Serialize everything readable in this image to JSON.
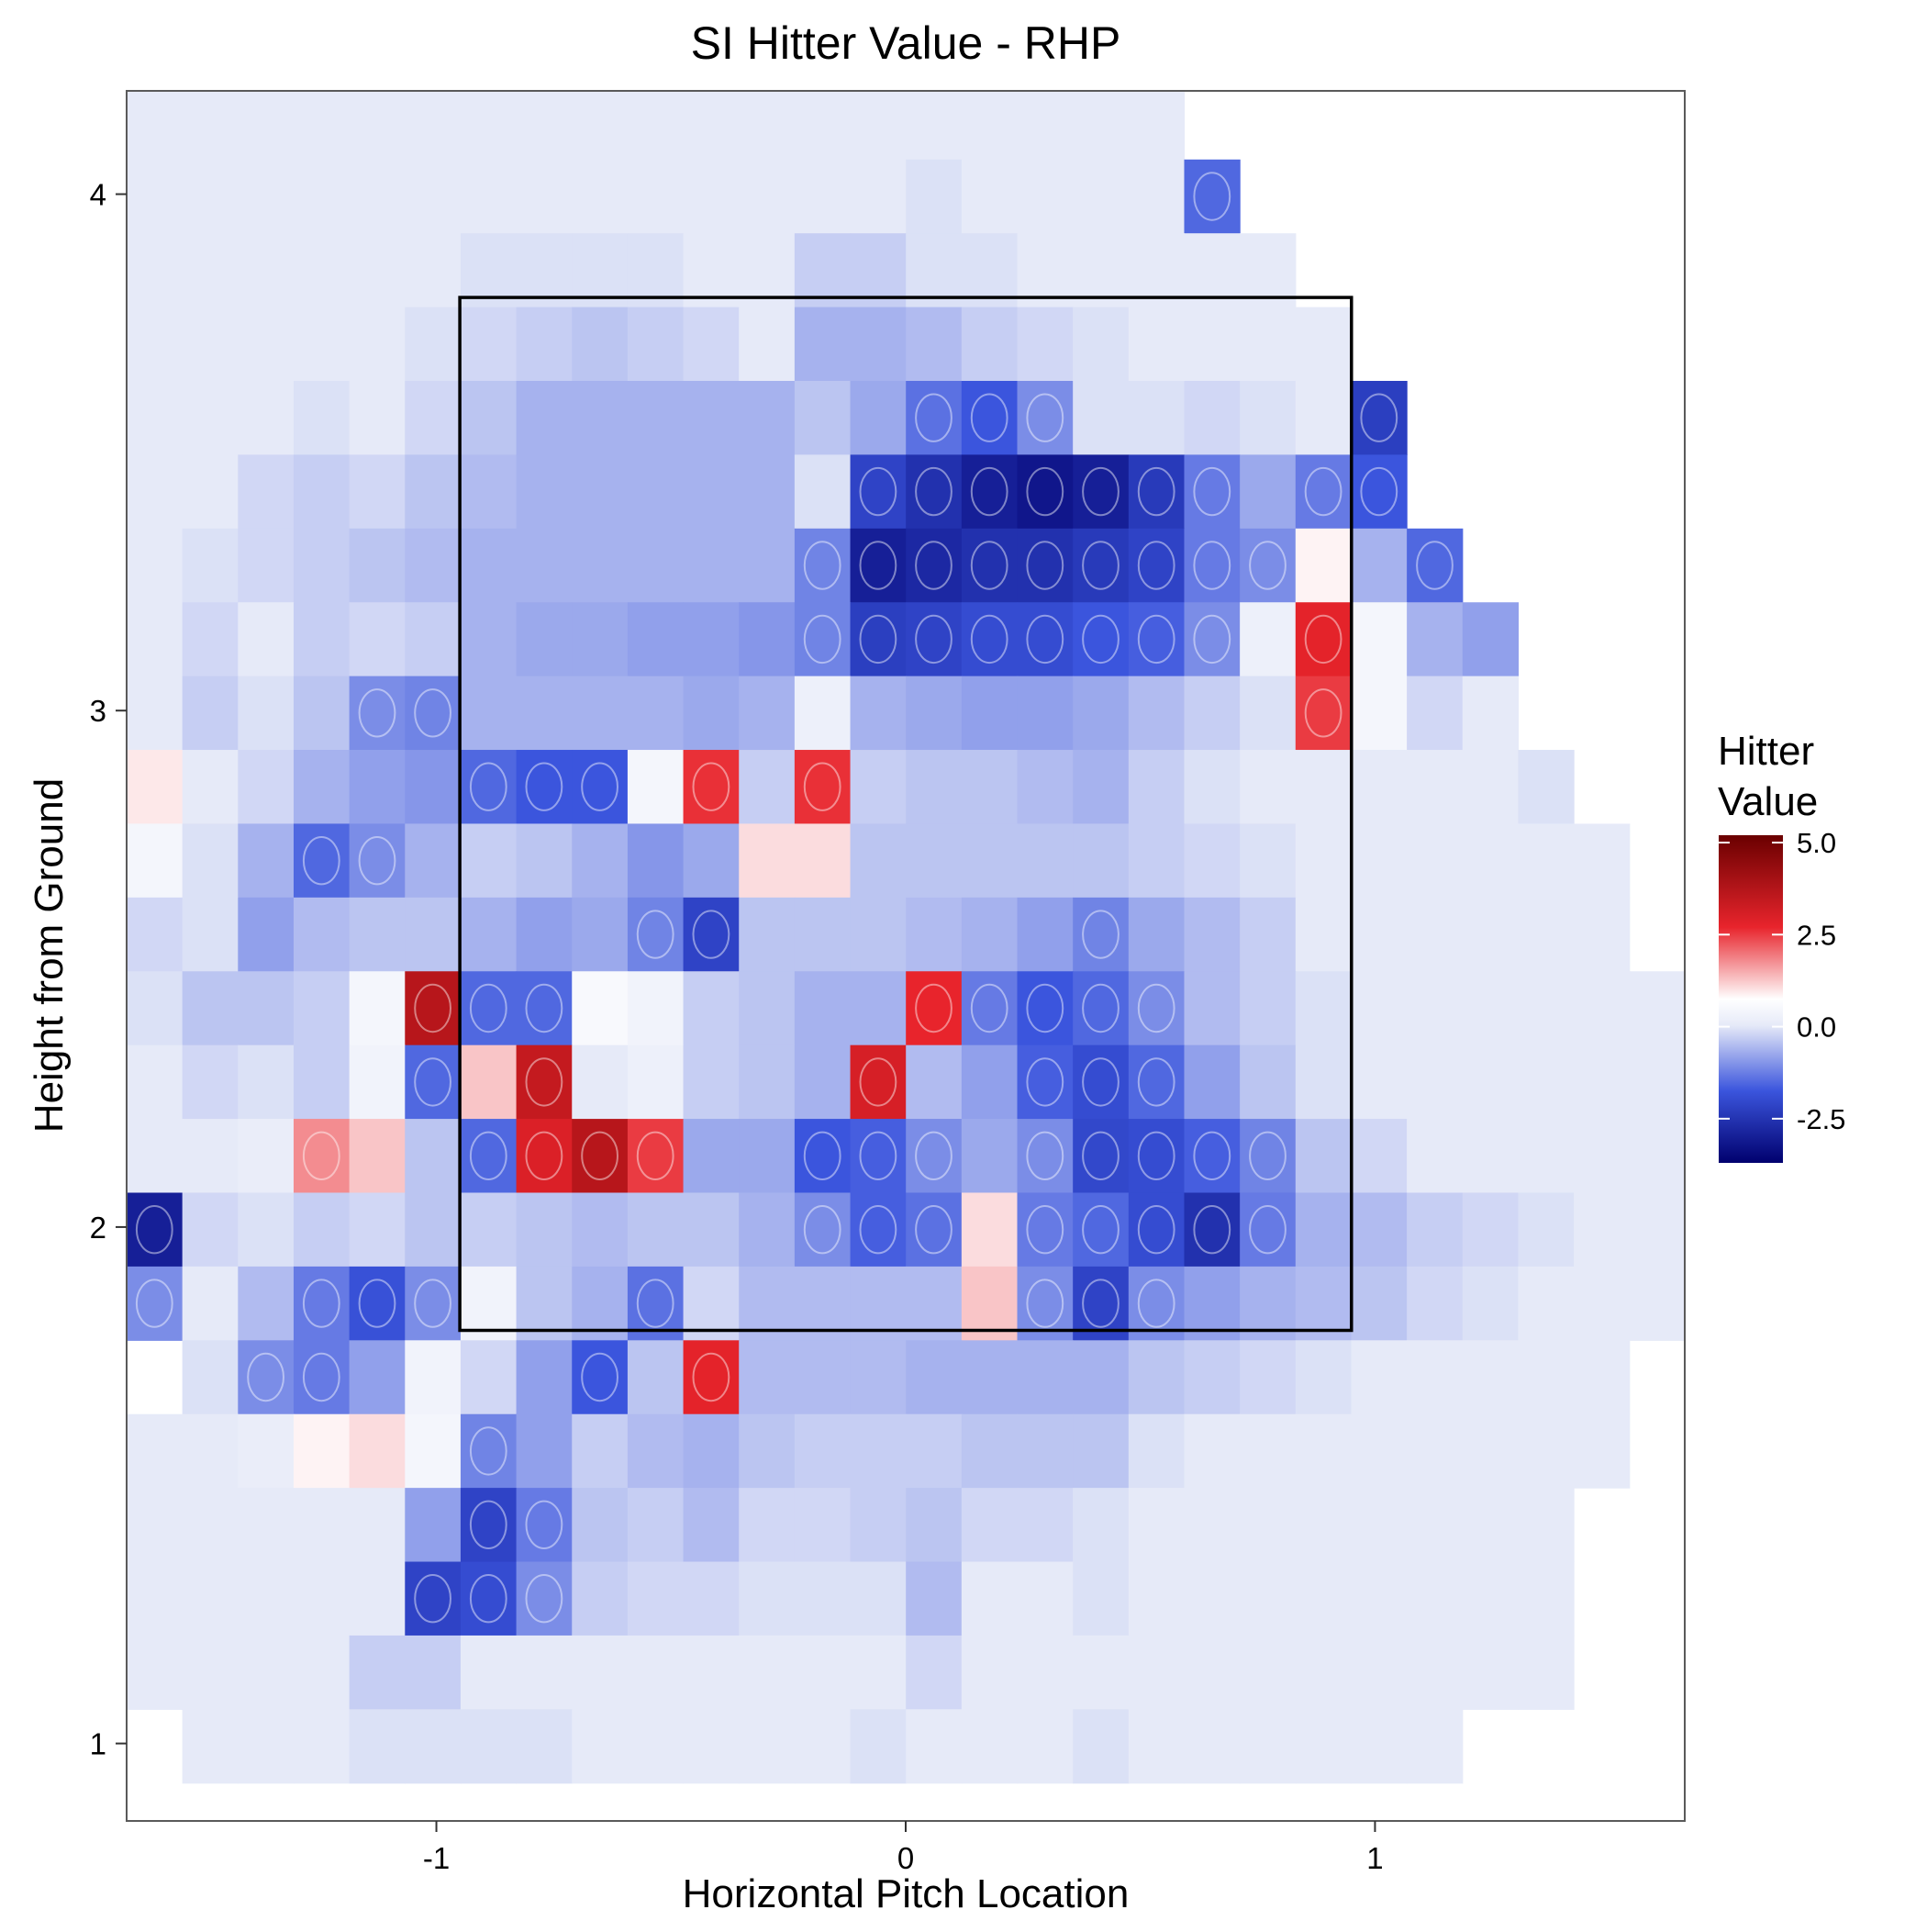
{
  "chart_data": {
    "type": "heatmap",
    "title": "SI Hitter Value - RHP",
    "xlabel": "Horizontal Pitch Location",
    "ylabel": "Height from Ground",
    "xlim": [
      -1.66,
      1.66
    ],
    "ylim": [
      0.85,
      4.2
    ],
    "x_ticks": [
      -1,
      0,
      1
    ],
    "x_tick_labels": [
      "-1",
      "0",
      "1"
    ],
    "y_ticks": [
      1,
      2,
      3,
      4
    ],
    "y_tick_labels": [
      "1",
      "2",
      "3",
      "4"
    ],
    "grid": false,
    "legend": {
      "title_lines": [
        "Hitter",
        "Value"
      ],
      "placement": "right",
      "range": [
        -3.7,
        5.2
      ],
      "ticks": [
        5.0,
        2.5,
        0.0,
        -2.5
      ],
      "tick_labels": [
        "5.0",
        "2.5",
        "0.0",
        "-2.5"
      ],
      "colors": {
        "low": "#00006e",
        "mid_low": "#3b55dd",
        "zero": "#e6eaf8",
        "mid_high": "#e8242c",
        "high": "#6a0000"
      }
    },
    "strike_zone": {
      "x": [
        -0.95,
        0.95
      ],
      "y": [
        1.8,
        3.8
      ]
    },
    "grid_cells": {
      "x_min": -1.66,
      "dx": 0.1186,
      "y_top": 4.21,
      "dy": 0.1429,
      "columns": 28,
      "rows": 23,
      "values": [
        [
          -0.2,
          -0.2,
          -0.2,
          -0.2,
          -0.2,
          -0.2,
          -0.2,
          -0.2,
          -0.2,
          -0.2,
          -0.2,
          -0.2,
          -0.2,
          -0.2,
          -0.2,
          -0.2,
          -0.2,
          -0.2,
          -0.2,
          null,
          null,
          null,
          null,
          null,
          null,
          null,
          null,
          null
        ],
        [
          -0.2,
          -0.2,
          -0.2,
          -0.2,
          -0.2,
          -0.2,
          -0.2,
          -0.2,
          -0.2,
          -0.2,
          -0.2,
          -0.2,
          -0.2,
          -0.2,
          -0.3,
          -0.2,
          -0.2,
          -0.2,
          -0.2,
          -1.6,
          null,
          null,
          null,
          null,
          null,
          null,
          null,
          null
        ],
        [
          -0.2,
          -0.2,
          -0.2,
          -0.2,
          -0.2,
          -0.2,
          -0.3,
          -0.3,
          -0.3,
          -0.3,
          -0.2,
          -0.2,
          -0.5,
          -0.5,
          -0.3,
          -0.3,
          -0.2,
          -0.2,
          -0.2,
          -0.2,
          -0.2,
          null,
          null,
          null,
          null,
          null,
          null,
          null
        ],
        [
          -0.2,
          -0.2,
          -0.2,
          -0.2,
          -0.2,
          -0.3,
          -0.4,
          -0.5,
          -0.6,
          -0.5,
          -0.4,
          -0.2,
          -0.8,
          -0.8,
          -0.7,
          -0.5,
          -0.4,
          -0.3,
          -0.2,
          -0.2,
          -0.2,
          -0.2,
          null,
          null,
          null,
          null,
          null,
          null
        ],
        [
          -0.2,
          -0.2,
          -0.2,
          -0.3,
          -0.2,
          -0.4,
          -0.6,
          -0.8,
          -0.8,
          -0.8,
          -0.8,
          -0.8,
          -0.6,
          -0.9,
          -1.5,
          -1.8,
          -1.2,
          -0.3,
          -0.3,
          -0.4,
          -0.3,
          -0.2,
          -2.3,
          null,
          null,
          null,
          null,
          null
        ],
        [
          -0.2,
          -0.2,
          -0.4,
          -0.5,
          -0.4,
          -0.6,
          -0.7,
          -0.8,
          -0.8,
          -0.8,
          -0.8,
          -0.8,
          -0.3,
          -2.2,
          -2.6,
          -3.0,
          -3.2,
          -3.0,
          -2.4,
          -1.4,
          -0.9,
          -1.4,
          -1.8,
          null,
          null,
          null,
          null,
          null
        ],
        [
          -0.2,
          -0.3,
          -0.4,
          -0.5,
          -0.6,
          -0.7,
          -0.8,
          -0.8,
          -0.8,
          -0.8,
          -0.8,
          -0.8,
          -1.3,
          -3.0,
          -2.8,
          -2.6,
          -2.6,
          -2.4,
          -2.2,
          -1.4,
          -1.2,
          0.6,
          -0.8,
          -1.6,
          null,
          null,
          null,
          null
        ],
        [
          -0.2,
          -0.4,
          -0.2,
          -0.5,
          -0.4,
          -0.5,
          -0.8,
          -0.9,
          -0.9,
          -1.0,
          -1.0,
          -1.1,
          -1.3,
          -2.3,
          -2.2,
          -2.0,
          -2.0,
          -1.8,
          -1.7,
          -1.2,
          0.0,
          2.5,
          0.2,
          -0.8,
          -1.0,
          null,
          null,
          null
        ],
        [
          -0.2,
          -0.5,
          -0.3,
          -0.6,
          -1.2,
          -1.3,
          -0.8,
          -0.8,
          -0.8,
          -0.8,
          -0.9,
          -0.8,
          0.0,
          -0.8,
          -0.9,
          -1.0,
          -1.0,
          -0.9,
          -0.7,
          -0.5,
          -0.3,
          2.2,
          0.2,
          -0.4,
          -0.2,
          null,
          null,
          null
        ],
        [
          0.7,
          -0.2,
          -0.4,
          -0.8,
          -1.0,
          -1.1,
          -1.6,
          -1.8,
          -1.8,
          0.2,
          2.3,
          -0.5,
          2.3,
          -0.5,
          -0.6,
          -0.6,
          -0.7,
          -0.8,
          -0.5,
          -0.3,
          -0.2,
          -0.2,
          -0.2,
          -0.2,
          -0.2,
          -0.3,
          null,
          null
        ],
        [
          0.2,
          -0.3,
          -0.8,
          -1.6,
          -1.2,
          -0.8,
          -0.5,
          -0.6,
          -0.8,
          -1.1,
          -0.9,
          0.8,
          0.8,
          -0.6,
          -0.6,
          -0.6,
          -0.6,
          -0.6,
          -0.5,
          -0.4,
          -0.3,
          -0.2,
          -0.2,
          -0.2,
          -0.2,
          -0.2,
          -0.2,
          null
        ],
        [
          -0.4,
          -0.3,
          -1.0,
          -0.7,
          -0.6,
          -0.6,
          -0.8,
          -1.0,
          -0.9,
          -1.3,
          -2.2,
          -0.6,
          -0.6,
          -0.6,
          -0.7,
          -0.8,
          -1.0,
          -1.3,
          -0.9,
          -0.7,
          -0.5,
          -0.2,
          -0.2,
          -0.2,
          -0.2,
          -0.2,
          -0.2,
          null
        ],
        [
          -0.3,
          -0.6,
          -0.6,
          -0.5,
          0.2,
          3.5,
          -1.6,
          -1.6,
          0.3,
          0.1,
          -0.5,
          -0.6,
          -0.8,
          -0.8,
          2.4,
          -1.4,
          -1.8,
          -1.6,
          -1.2,
          -0.7,
          -0.5,
          -0.3,
          -0.2,
          -0.2,
          -0.2,
          -0.2,
          -0.2,
          -0.2
        ],
        [
          -0.2,
          -0.4,
          -0.3,
          -0.5,
          0.1,
          -1.6,
          1.0,
          3.2,
          -0.2,
          0.0,
          -0.5,
          -0.6,
          -0.8,
          2.8,
          -0.7,
          -1.0,
          -1.7,
          -2.0,
          -1.6,
          -1.0,
          -0.6,
          -0.3,
          -0.2,
          -0.2,
          -0.2,
          -0.2,
          -0.2,
          -0.2
        ],
        [
          -0.2,
          -0.2,
          -0.1,
          1.5,
          1.0,
          -0.6,
          -1.6,
          2.7,
          3.5,
          2.2,
          -0.9,
          -0.9,
          -1.8,
          -1.7,
          -1.2,
          -0.9,
          -1.2,
          -2.1,
          -2.0,
          -1.7,
          -1.3,
          -0.6,
          -0.4,
          -0.2,
          -0.2,
          -0.2,
          -0.2,
          -0.2
        ],
        [
          -3.0,
          -0.4,
          -0.3,
          -0.5,
          -0.4,
          -0.6,
          -0.5,
          -0.6,
          -0.7,
          -0.6,
          -0.6,
          -0.8,
          -1.2,
          -1.7,
          -1.5,
          0.8,
          -1.4,
          -1.6,
          -2.0,
          -2.6,
          -1.4,
          -0.8,
          -0.7,
          -0.5,
          -0.4,
          -0.3,
          -0.2,
          -0.2
        ],
        [
          -1.2,
          -0.2,
          -0.7,
          -1.4,
          -1.9,
          -1.2,
          0.1,
          -0.6,
          -0.8,
          -1.5,
          -0.4,
          -0.7,
          -0.7,
          -0.7,
          -0.7,
          1.0,
          -1.2,
          -2.2,
          -1.2,
          -1.0,
          -0.8,
          -0.7,
          -0.6,
          -0.4,
          -0.3,
          -0.2,
          -0.2,
          -0.2
        ],
        [
          null,
          -0.3,
          -1.2,
          -1.4,
          -1.0,
          0.1,
          -0.4,
          -1.0,
          -1.8,
          -0.6,
          2.5,
          -0.7,
          -0.7,
          -0.7,
          -0.8,
          -0.8,
          -0.8,
          -0.8,
          -0.6,
          -0.5,
          -0.4,
          -0.3,
          -0.2,
          -0.2,
          -0.2,
          -0.2,
          -0.2,
          null
        ],
        [
          -0.2,
          -0.2,
          -0.1,
          0.6,
          0.8,
          0.2,
          -1.3,
          -1.0,
          -0.5,
          -0.7,
          -0.8,
          -0.6,
          -0.5,
          -0.5,
          -0.5,
          -0.6,
          -0.6,
          -0.6,
          -0.3,
          -0.2,
          -0.2,
          -0.2,
          -0.2,
          -0.2,
          -0.2,
          -0.2,
          -0.2,
          null
        ],
        [
          -0.2,
          -0.2,
          -0.2,
          -0.2,
          -0.2,
          -1.0,
          -2.2,
          -1.4,
          -0.6,
          -0.5,
          -0.7,
          -0.4,
          -0.4,
          -0.5,
          -0.6,
          -0.4,
          -0.4,
          -0.3,
          -0.2,
          -0.2,
          -0.2,
          -0.2,
          -0.2,
          -0.2,
          -0.2,
          -0.2,
          null,
          null
        ],
        [
          -0.2,
          -0.2,
          -0.2,
          -0.2,
          -0.2,
          -2.2,
          -2.0,
          -1.2,
          -0.5,
          -0.4,
          -0.4,
          -0.3,
          -0.3,
          -0.3,
          -0.7,
          -0.2,
          -0.2,
          -0.3,
          -0.2,
          -0.2,
          -0.2,
          -0.2,
          -0.2,
          -0.2,
          -0.2,
          -0.2,
          null,
          null
        ],
        [
          -0.2,
          -0.2,
          -0.2,
          -0.2,
          -0.5,
          -0.5,
          -0.2,
          -0.2,
          -0.2,
          -0.2,
          -0.2,
          -0.2,
          -0.2,
          -0.2,
          -0.4,
          -0.2,
          -0.2,
          -0.2,
          -0.2,
          -0.2,
          -0.2,
          -0.2,
          -0.2,
          -0.2,
          -0.2,
          -0.2,
          null,
          null
        ],
        [
          null,
          -0.2,
          -0.2,
          -0.2,
          -0.3,
          -0.3,
          -0.3,
          -0.3,
          -0.2,
          -0.2,
          -0.2,
          -0.2,
          -0.2,
          -0.3,
          -0.2,
          -0.2,
          -0.2,
          -0.3,
          -0.2,
          -0.2,
          -0.2,
          -0.2,
          -0.2,
          -0.2,
          null,
          null,
          null,
          null
        ]
      ]
    }
  }
}
